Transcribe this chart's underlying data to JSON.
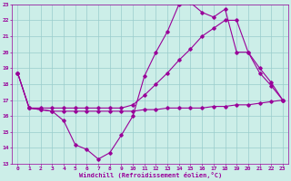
{
  "xlabel": "Windchill (Refroidissement éolien,°C)",
  "bg_color": "#cceee8",
  "grid_color": "#99cccc",
  "line_color": "#990099",
  "xlim": [
    -0.5,
    23.5
  ],
  "ylim": [
    13,
    23
  ],
  "xticks": [
    0,
    1,
    2,
    3,
    4,
    5,
    6,
    7,
    8,
    9,
    10,
    11,
    12,
    13,
    14,
    15,
    16,
    17,
    18,
    19,
    20,
    21,
    22,
    23
  ],
  "yticks": [
    13,
    14,
    15,
    16,
    17,
    18,
    19,
    20,
    21,
    22,
    23
  ],
  "series1_x": [
    0,
    1,
    2,
    3,
    4,
    5,
    6,
    7,
    8,
    9,
    10,
    11,
    12,
    13,
    14,
    15,
    16,
    17,
    18,
    19,
    20,
    21,
    22,
    23
  ],
  "series1_y": [
    18.7,
    16.5,
    16.4,
    16.3,
    16.3,
    16.3,
    16.3,
    16.3,
    16.3,
    16.3,
    16.3,
    16.4,
    16.4,
    16.5,
    16.5,
    16.5,
    16.5,
    16.6,
    16.6,
    16.7,
    16.7,
    16.8,
    16.9,
    17.0
  ],
  "series2_x": [
    0,
    1,
    2,
    3,
    4,
    5,
    6,
    7,
    8,
    9,
    10,
    11,
    12,
    13,
    14,
    15,
    16,
    17,
    18,
    19,
    20,
    21,
    22,
    23
  ],
  "series2_y": [
    18.7,
    16.5,
    16.4,
    16.3,
    15.7,
    14.2,
    13.9,
    13.3,
    13.7,
    14.8,
    16.0,
    18.5,
    20.0,
    21.3,
    23.0,
    23.1,
    22.5,
    22.2,
    22.7,
    20.0,
    20.0,
    18.7,
    17.9,
    17.0
  ],
  "series3_x": [
    0,
    1,
    2,
    3,
    4,
    5,
    6,
    7,
    8,
    9,
    10,
    11,
    12,
    13,
    14,
    15,
    16,
    17,
    18,
    19,
    20,
    21,
    22,
    23
  ],
  "series3_y": [
    18.7,
    16.5,
    16.5,
    16.5,
    16.5,
    16.5,
    16.5,
    16.5,
    16.5,
    16.5,
    16.7,
    17.3,
    18.0,
    18.7,
    19.5,
    20.2,
    21.0,
    21.5,
    22.0,
    22.0,
    20.0,
    19.0,
    18.1,
    17.0
  ]
}
